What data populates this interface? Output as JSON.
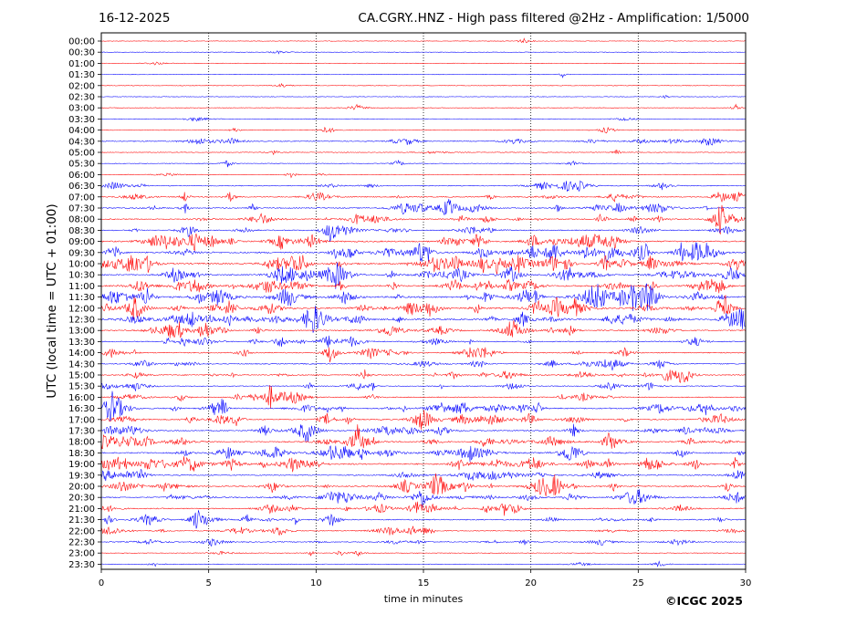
{
  "header": {
    "date": "16-12-2025",
    "title": "CA.CGRY..HNZ - High pass filtered @2Hz - Amplification: 1/5000"
  },
  "footer": {
    "copyright": "©ICGC 2025"
  },
  "chart_data": {
    "type": "line",
    "title": "CA.CGRY..HNZ - High pass filtered @2Hz - Amplification: 1/5000",
    "xlabel": "time in minutes",
    "ylabel": "UTC (local time = UTC + 01:00)",
    "xlim": [
      0,
      30
    ],
    "x_ticks": [
      0,
      5,
      10,
      15,
      20,
      25,
      30
    ],
    "grid": "vertical dotted lines at 5-minute intervals",
    "row_labels": [
      "00:00",
      "00:30",
      "01:00",
      "01:30",
      "02:00",
      "02:30",
      "03:00",
      "03:30",
      "04:00",
      "04:30",
      "05:00",
      "05:30",
      "06:00",
      "06:30",
      "07:00",
      "07:30",
      "08:00",
      "08:30",
      "09:00",
      "09:30",
      "10:00",
      "10:30",
      "11:00",
      "11:30",
      "12:00",
      "12:30",
      "13:00",
      "13:30",
      "14:00",
      "14:30",
      "15:00",
      "15:30",
      "16:00",
      "16:30",
      "17:00",
      "17:30",
      "18:00",
      "18:30",
      "19:00",
      "19:30",
      "20:00",
      "20:30",
      "21:00",
      "21:30",
      "22:00",
      "22:30",
      "23:00",
      "23:30"
    ],
    "trace_colors": [
      "#ff0000",
      "#0000ff"
    ],
    "trace_activity": [
      0.05,
      0.05,
      0.05,
      0.05,
      0.05,
      0.05,
      0.06,
      0.06,
      0.12,
      0.35,
      0.12,
      0.12,
      0.12,
      0.3,
      0.45,
      0.55,
      0.6,
      0.5,
      0.85,
      0.95,
      0.95,
      0.85,
      0.9,
      1.0,
      0.95,
      1.0,
      0.6,
      0.5,
      0.5,
      0.45,
      0.55,
      0.35,
      0.5,
      0.75,
      0.6,
      0.6,
      0.6,
      0.75,
      0.9,
      0.5,
      0.7,
      0.6,
      0.55,
      0.55,
      0.4,
      0.35,
      0.15,
      0.1
    ]
  }
}
